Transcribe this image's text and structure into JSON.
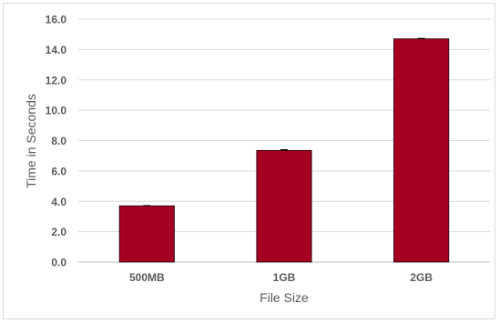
{
  "chart_data": {
    "type": "bar",
    "categories": [
      "500MB",
      "1GB",
      "2GB"
    ],
    "values": [
      3.7,
      7.35,
      14.7
    ],
    "error_plus": [
      0.02,
      0.05,
      0.03
    ],
    "title": "",
    "xlabel": "File Size",
    "ylabel": "Time in Seconds",
    "ylim": [
      0,
      16
    ],
    "yticks": [
      "0.0",
      "2.0",
      "4.0",
      "6.0",
      "8.0",
      "10.0",
      "12.0",
      "14.0",
      "16.0"
    ],
    "grid": true,
    "legend": "none"
  },
  "colors": {
    "bar": "#a50021",
    "bar_edge": "#1a0006",
    "grid": "#d9d9d9",
    "axis_text": "#595959"
  }
}
